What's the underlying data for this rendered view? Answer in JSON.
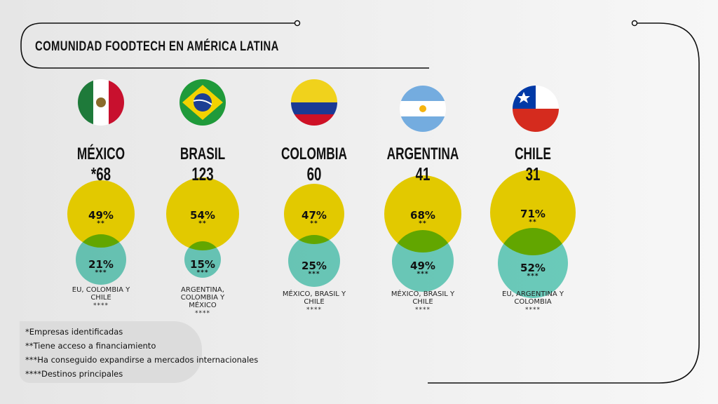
{
  "title": "COMUNIDAD FOODTECH EN AMÉRICA LATINA",
  "colors": {
    "financing": "#e2c900",
    "international": "#6fd3c2",
    "overlap": "#6aae12"
  },
  "countries": [
    {
      "name": "MÉXICO",
      "count": "*68",
      "financing": "49%",
      "financing_mark": "**",
      "international": "21%",
      "international_mark": "***",
      "destinations": "EU, COLOMBIA Y CHILE",
      "destinations_mark": "****",
      "flag": "mexico-flag"
    },
    {
      "name": "BRASIL",
      "count": "123",
      "financing": "54%",
      "financing_mark": "**",
      "international": "15%",
      "international_mark": "***",
      "destinations": "ARGENTINA, COLOMBIA Y MÉXICO",
      "destinations_mark": "****",
      "flag": "brazil-flag"
    },
    {
      "name": "COLOMBIA",
      "count": "60",
      "financing": "47%",
      "financing_mark": "**",
      "international": "25%",
      "international_mark": "***",
      "destinations": "MÉXICO, BRASIL Y CHILE",
      "destinations_mark": "****",
      "flag": "colombia-flag"
    },
    {
      "name": "ARGENTINA",
      "count": "41",
      "financing": "68%",
      "financing_mark": "**",
      "international": "49%",
      "international_mark": "***",
      "destinations": "MÉXICO, BRASIL Y CHILE",
      "destinations_mark": "****",
      "flag": "argentina-flag"
    },
    {
      "name": "CHILE",
      "count": "31",
      "financing": "71%",
      "financing_mark": "**",
      "international": "52%",
      "international_mark": "***",
      "destinations": "EU, ARGENTINA Y COLOMBIA",
      "destinations_mark": "****",
      "flag": "chile-flag"
    }
  ],
  "legend": [
    "*Empresas identificadas",
    "**Tiene acceso a financiamiento",
    "***Ha conseguido expandirse a mercados internacionales",
    "****Destinos principales"
  ]
}
